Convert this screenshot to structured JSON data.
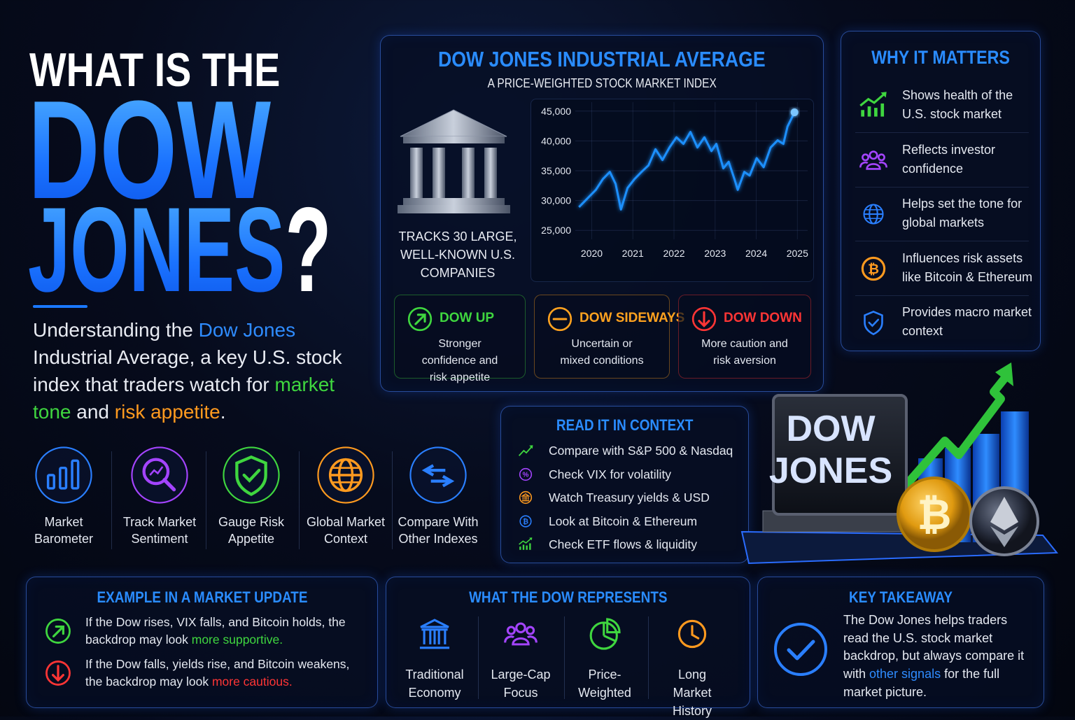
{
  "hero": {
    "title_line1": "WHAT IS THE",
    "title_line2": "DOW",
    "title_line3": "JONES",
    "title_mark": "?",
    "intro": [
      {
        "text": "Understanding the "
      },
      {
        "text": "Dow Jones",
        "color": "#2f8cff"
      },
      {
        "text": " Industrial Average, a key U.S. stock index that traders watch for "
      },
      {
        "text": "market tone",
        "color": "#3fd63f"
      },
      {
        "text": " and "
      },
      {
        "text": "risk appetite",
        "color": "#ff9a1f"
      },
      {
        "text": "."
      }
    ]
  },
  "features": [
    {
      "label": "Market Barometer",
      "color": "#2a7fff"
    },
    {
      "label": "Track Market Sentiment",
      "color": "#a444ff"
    },
    {
      "label": "Gauge Risk Appetite",
      "color": "#3fd63f"
    },
    {
      "label": "Global Market Context",
      "color": "#ff9a1f"
    },
    {
      "label": "Compare With Other Indexes",
      "color": "#2a7fff"
    }
  ],
  "dow_panel": {
    "title": "DOW JONES INDUSTRIAL AVERAGE",
    "subtitle": "A PRICE-WEIGHTED STOCK MARKET INDEX",
    "caption": "TRACKS 30 LARGE, WELL-KNOWN U.S. COMPANIES",
    "states": [
      {
        "name": "DOW UP",
        "text": "Stronger confidence and risk appetite",
        "color": "#3fd63f"
      },
      {
        "name": "DOW SIDEWAYS",
        "text": "Uncertain or mixed conditions",
        "color": "#ffa21f"
      },
      {
        "name": "DOW DOWN",
        "text": "More caution and risk aversion",
        "color": "#ff3535"
      }
    ]
  },
  "chart_data": {
    "type": "line",
    "color": "#1e90ff",
    "grid": true,
    "x": [
      2019.69,
      2019.93,
      2020.1,
      2020.27,
      2020.44,
      2020.58,
      2020.71,
      2020.87,
      2021.04,
      2021.21,
      2021.38,
      2021.55,
      2021.72,
      2021.89,
      2022.06,
      2022.23,
      2022.4,
      2022.57,
      2022.74,
      2022.91,
      2023.03,
      2023.2,
      2023.33,
      2023.47,
      2023.55,
      2023.71,
      2023.84,
      2024.01,
      2024.18,
      2024.35,
      2024.52,
      2024.66,
      2024.76,
      2024.93
    ],
    "values": [
      28900,
      30600,
      31800,
      33600,
      34800,
      32800,
      28500,
      32100,
      33600,
      34800,
      35900,
      38600,
      36800,
      38900,
      40600,
      39500,
      41500,
      38900,
      40600,
      38300,
      39500,
      35400,
      36500,
      33600,
      31800,
      34800,
      34200,
      37100,
      35600,
      38900,
      40100,
      39500,
      42400,
      44800
    ],
    "xlim": [
      2019.6,
      2025.25
    ],
    "xticks": [
      2020,
      2021,
      2022,
      2023,
      2024,
      2025
    ],
    "ylim": [
      23500,
      46500
    ],
    "yticks": [
      {
        "value": 25000,
        "label": "25,000"
      },
      {
        "value": 30000,
        "label": "30,000"
      },
      {
        "value": 35000,
        "label": "35,000"
      },
      {
        "value": 40000,
        "label": "40,000"
      },
      {
        "value": 45000,
        "label": "45,000"
      }
    ]
  },
  "why_it_matters": {
    "title": "WHY IT MATTERS",
    "items": [
      {
        "text": "Shows health of the U.S. stock market",
        "color": "#3fd63f"
      },
      {
        "text": "Reflects investor confidence",
        "color": "#a444ff"
      },
      {
        "text": "Helps set the tone for global markets",
        "color": "#2a7fff"
      },
      {
        "text": "Influences risk assets like Bitcoin & Ethereum",
        "color": "#ff9a1f"
      },
      {
        "text": "Provides macro market context",
        "color": "#2a7fff"
      }
    ]
  },
  "read_in_context": {
    "title": "READ IT IN CONTEXT",
    "items": [
      {
        "text": "Compare with S&P 500 & Nasdaq",
        "color": "#3fd63f"
      },
      {
        "text": "Check VIX for volatility",
        "color": "#a444ff"
      },
      {
        "text": "Watch Treasury yields & USD",
        "color": "#ff9a1f"
      },
      {
        "text": "Look at Bitcoin & Ethereum",
        "color": "#2a7fff"
      },
      {
        "text": "Check ETF flows & liquidity",
        "color": "#3fd63f"
      }
    ]
  },
  "badge": {
    "line1": "DOW",
    "line2": "JONES"
  },
  "example": {
    "title": "EXAMPLE IN A MARKET UPDATE",
    "items": [
      {
        "text": "If the Dow rises, VIX falls, and Bitcoin holds, the backdrop may look ",
        "highlight": "more supportive.",
        "color": "#3fd63f"
      },
      {
        "text": "If the Dow falls, yields rise, and Bitcoin weakens, the backdrop may look ",
        "highlight": "more cautious.",
        "color": "#ff3535"
      }
    ]
  },
  "represents": {
    "title": "WHAT THE DOW REPRESENTS",
    "items": [
      {
        "label": "Traditional Economy",
        "color": "#2a7fff"
      },
      {
        "label": "Large-Cap Focus",
        "color": "#a444ff"
      },
      {
        "label": "Price-Weighted",
        "color": "#3fd63f"
      },
      {
        "label": "Long Market History",
        "color": "#ff9a1f"
      }
    ]
  },
  "takeaway": {
    "title": "KEY TAKEAWAY",
    "text_before": "The Dow Jones helps traders read the U.S. stock market backdrop, but always compare it with ",
    "highlight": "other signals",
    "highlight_color": "#2f8cff",
    "text_after": " for the full market picture."
  }
}
